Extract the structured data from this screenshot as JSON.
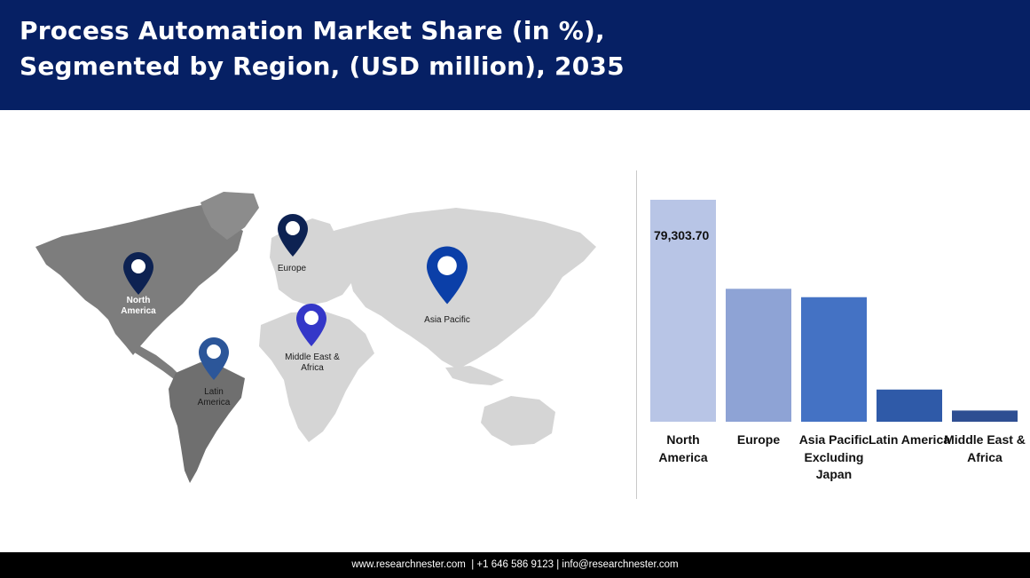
{
  "header": {
    "title": "Process Automation Market Share (in %),\nSegmented by Region, (USD million), 2035"
  },
  "map": {
    "regions": [
      {
        "id": "north-america",
        "label": "North America",
        "pin_color": "#0d2252"
      },
      {
        "id": "europe",
        "label": "Europe",
        "pin_color": "#0d2252"
      },
      {
        "id": "asia-pacific",
        "label": "Asia Pacific",
        "pin_color": "#0b3fa8"
      },
      {
        "id": "middle-east-africa",
        "label": "Middle East & Africa",
        "pin_color": "#3437c8"
      },
      {
        "id": "latin-america",
        "label": "Latin America",
        "pin_color": "#2c5699"
      }
    ]
  },
  "chart_data": {
    "type": "bar",
    "title": "",
    "categories": [
      "North America",
      "Europe",
      "Asia Pacific Excluding Japan",
      "Latin America",
      "Middle East & Africa"
    ],
    "values": [
      79303.7,
      47500,
      44500,
      11500,
      4000
    ],
    "data_labels": [
      "79,303.70",
      "",
      "",
      "",
      ""
    ],
    "colors": [
      "#b8c5e6",
      "#8ea3d5",
      "#4472c4",
      "#2f5aa8",
      "#2e4e92"
    ],
    "ylim": [
      0,
      79303.7
    ],
    "grid": false,
    "legend": "none"
  },
  "footer": {
    "text": "www.researchnester.com  | +1 646 586 9123 | info@researchnester.com"
  }
}
